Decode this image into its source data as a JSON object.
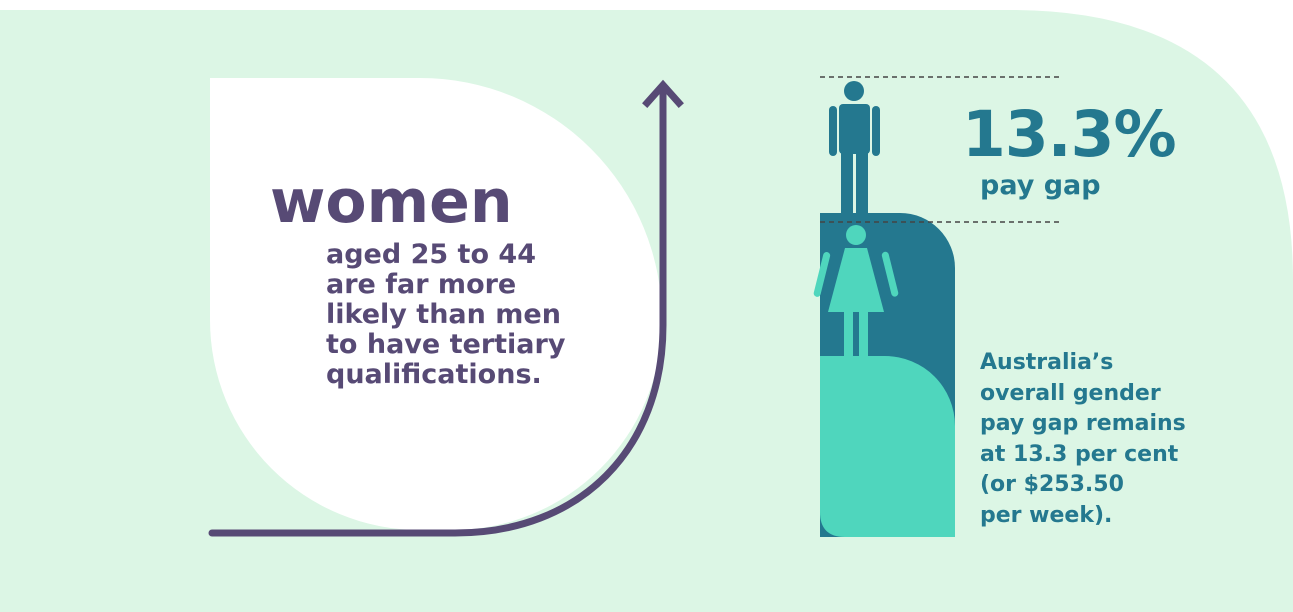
{
  "colors": {
    "background": "#ffffff",
    "panel": "#dcf6e5",
    "purple": "#574a75",
    "teal_dark": "#24788f",
    "teal_light": "#4fd6bd"
  },
  "women_panel": {
    "heading": "women",
    "lines": [
      "aged 25 to 44",
      "are far more",
      "likely than men",
      "to have tertiary",
      "qualifications."
    ]
  },
  "pay_gap_panel": {
    "percent": "13.3%",
    "label": "pay gap",
    "lines": [
      "Australia’s",
      "overall gender",
      "pay gap remains",
      "at 13.3 per cent",
      "(or $253.50",
      "per week)."
    ],
    "male_figure_icon": "male-figure-icon",
    "female_figure_icon": "female-figure-icon"
  }
}
